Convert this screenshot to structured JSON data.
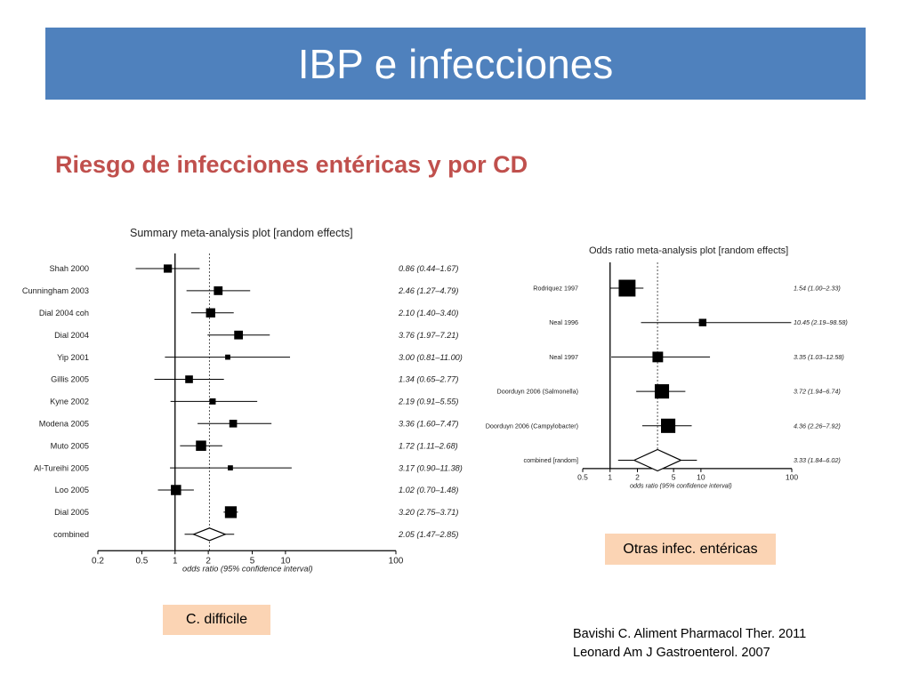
{
  "slide": {
    "title": "IBP e infecciones",
    "subtitle": "Riesgo de infecciones entéricas y por CD",
    "tags": {
      "left": "C. difficile",
      "right": "Otras infec. entéricas"
    },
    "citations": [
      "Bavishi C. Aliment Pharmacol Ther. 2011",
      "Leonard Am J Gastroenterol. 2007"
    ]
  },
  "colors": {
    "title_bar": "#4f81bd",
    "subtitle": "#c0504d",
    "tag_bg": "#fbd4b4",
    "marker": "#000000"
  },
  "chart_data": [
    {
      "type": "forest",
      "title": "Summary meta-analysis plot [random effects]",
      "xlabel": "odds ratio (95% confidence interval)",
      "scale": "log",
      "xlim": [
        0.2,
        100
      ],
      "ticks": [
        0.2,
        0.5,
        1,
        2,
        5,
        10,
        100
      ],
      "tick_labels": [
        "0.2",
        "0.5",
        "1",
        "2",
        "5",
        "10",
        "100"
      ],
      "reference_line": 1,
      "pooled_line": 2.05,
      "rows": [
        {
          "study": "Shah 2000",
          "or": 0.86,
          "lo": 0.44,
          "hi": 1.67,
          "weight": 0.8,
          "label": "0.86 (0.44–1.67)"
        },
        {
          "study": "Cunningham 2003",
          "or": 2.46,
          "lo": 1.27,
          "hi": 4.79,
          "weight": 0.85,
          "label": "2.46 (1.27–4.79)"
        },
        {
          "study": "Dial 2004 coh",
          "or": 2.1,
          "lo": 1.4,
          "hi": 3.4,
          "weight": 0.9,
          "label": "2.10 (1.40–3.40)"
        },
        {
          "study": "Dial 2004",
          "or": 3.76,
          "lo": 1.97,
          "hi": 7.21,
          "weight": 0.85,
          "label": "3.76 (1.97–7.21)"
        },
        {
          "study": "Yip 2001",
          "or": 3.0,
          "lo": 0.81,
          "hi": 11.0,
          "weight": 0.5,
          "label": "3.00 (0.81–11.00)"
        },
        {
          "study": "Gillis 2005",
          "or": 1.34,
          "lo": 0.65,
          "hi": 2.77,
          "weight": 0.75,
          "label": "1.34 (0.65–2.77)"
        },
        {
          "study": "Kyne 2002",
          "or": 2.19,
          "lo": 0.91,
          "hi": 5.55,
          "weight": 0.6,
          "label": "2.19 (0.91–5.55)"
        },
        {
          "study": "Modena 2005",
          "or": 3.36,
          "lo": 1.6,
          "hi": 7.47,
          "weight": 0.75,
          "label": "3.36 (1.60–7.47)"
        },
        {
          "study": "Muto 2005",
          "or": 1.72,
          "lo": 1.11,
          "hi": 2.68,
          "weight": 1.0,
          "label": "1.72 (1.11–2.68)"
        },
        {
          "study": "Al-Tureihi 2005",
          "or": 3.17,
          "lo": 0.9,
          "hi": 11.38,
          "weight": 0.5,
          "label": "3.17 (0.90–11.38)"
        },
        {
          "study": "Loo 2005",
          "or": 1.02,
          "lo": 0.7,
          "hi": 1.48,
          "weight": 1.0,
          "label": "1.02 (0.70–1.48)"
        },
        {
          "study": "Dial 2005",
          "or": 3.2,
          "lo": 2.75,
          "hi": 3.71,
          "weight": 1.15,
          "label": "3.20 (2.75–3.71)"
        }
      ],
      "combined": {
        "study": "combined",
        "or": 2.05,
        "lo": 1.47,
        "hi": 2.85,
        "label": "2.05 (1.47–2.85)"
      }
    },
    {
      "type": "forest",
      "title": "Odds ratio meta-analysis plot [random effects]",
      "xlabel": "odds ratio (95% confidence interval)",
      "scale": "log",
      "xlim": [
        0.5,
        100
      ],
      "ticks": [
        0.5,
        1,
        2,
        5,
        10,
        100
      ],
      "tick_labels": [
        "0.5",
        "1",
        "2",
        "5",
        "10",
        "100"
      ],
      "reference_line": 1,
      "pooled_line": 3.33,
      "rows": [
        {
          "study": "Rodriquez 1997",
          "or": 1.54,
          "lo": 1.0,
          "hi": 2.33,
          "weight": 1.35,
          "label": "1.54 (1.00–2.33)"
        },
        {
          "study": "Neal 1996",
          "or": 10.45,
          "lo": 2.19,
          "hi": 98.58,
          "weight": 0.6,
          "label": "10.45 (2.19–98.58)"
        },
        {
          "study": "Neal 1997",
          "or": 3.35,
          "lo": 1.03,
          "hi": 12.58,
          "weight": 0.85,
          "label": "3.35 (1.03–12.58)"
        },
        {
          "study": "Doorduyn 2006 (Salmonella)",
          "or": 3.72,
          "lo": 1.94,
          "hi": 6.74,
          "weight": 1.15,
          "label": "3.72 (1.94–6.74)"
        },
        {
          "study": "Doorduyn 2006 (Campylobacter)",
          "or": 4.36,
          "lo": 2.26,
          "hi": 7.92,
          "weight": 1.15,
          "label": "4.36 (2.26–7.92)"
        }
      ],
      "combined": {
        "study": "combined [random]",
        "or": 3.33,
        "lo": 1.84,
        "hi": 6.02,
        "label": "3.33 (1.84–6.02)"
      }
    }
  ]
}
